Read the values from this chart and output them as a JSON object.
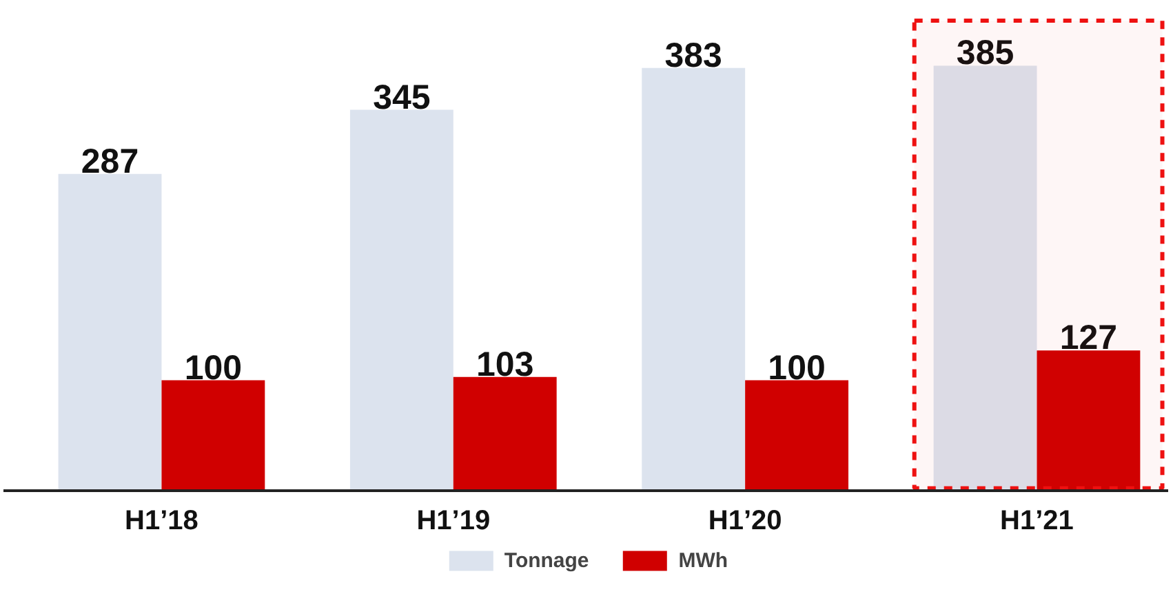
{
  "chart_data": {
    "type": "bar",
    "categories": [
      "H1’18",
      "H1’19",
      "H1’20",
      "H1’21"
    ],
    "series": [
      {
        "name": "Tonnage",
        "color": "#dce3ee",
        "values": [
          287,
          345,
          383,
          385
        ]
      },
      {
        "name": "MWh",
        "color": "#d00000",
        "values": [
          100,
          103,
          100,
          127
        ]
      }
    ],
    "data_labels": true,
    "legend": "bottom",
    "bands": [
      {
        "axis": "x",
        "from": "H1’21",
        "to": "H1’21",
        "color": "#ee1111"
      }
    ]
  }
}
